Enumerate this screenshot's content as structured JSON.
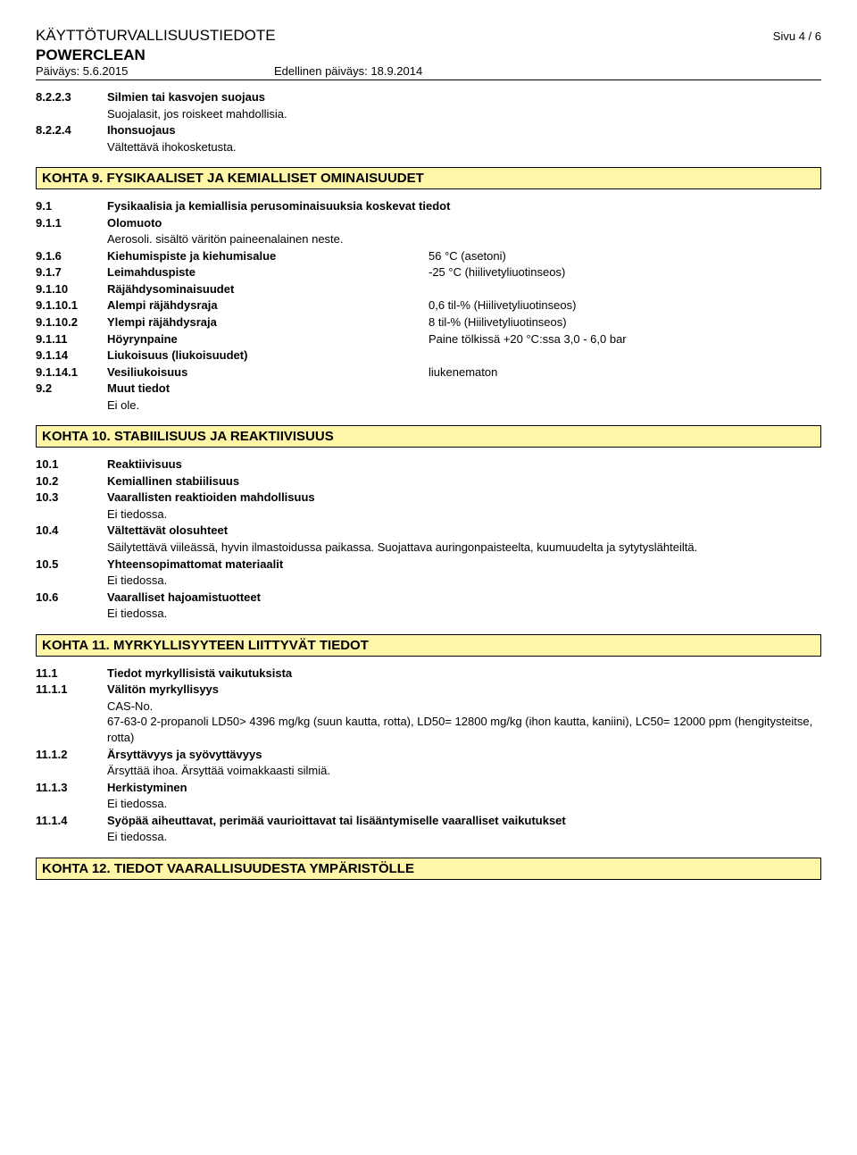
{
  "header": {
    "title": "KÄYTTÖTURVALLISUUSTIEDOTE",
    "page": "Sivu 4 / 6",
    "product": "POWERCLEAN",
    "date_label": "Päiväys: 5.6.2015",
    "prev_date_label": "Edellinen päiväys: 18.9.2014"
  },
  "s8": {
    "r1": {
      "num": "8.2.2.3",
      "label": "Silmien tai kasvojen suojaus",
      "sub": "Suojalasit, jos roiskeet mahdollisia."
    },
    "r2": {
      "num": "8.2.2.4",
      "label": "Ihonsuojaus",
      "sub": "Vältettävä ihokosketusta."
    }
  },
  "kohta9": {
    "title": "KOHTA 9. FYSIKAALISET JA KEMIALLISET OMINAISUUDET"
  },
  "s9": {
    "r1": {
      "num": "9.1",
      "label": "Fysikaalisia ja kemiallisia perusominaisuuksia koskevat tiedot"
    },
    "r2": {
      "num": "9.1.1",
      "label": "Olomuoto",
      "sub": "Aerosoli. sisältö väritön paineenalainen neste."
    },
    "r3": {
      "num": "9.1.6",
      "label": "Kiehumispiste ja kiehumisalue",
      "val": "56 °C (asetoni)"
    },
    "r4": {
      "num": "9.1.7",
      "label": "Leimahduspiste",
      "val": "-25 °C (hiilivetyliuotinseos)"
    },
    "r5": {
      "num": "9.1.10",
      "label": "Räjähdysominaisuudet"
    },
    "r6": {
      "num": "9.1.10.1",
      "label": "Alempi räjähdysraja",
      "val": "0,6 til-% (Hiilivetyliuotinseos)"
    },
    "r7": {
      "num": "9.1.10.2",
      "label": "Ylempi räjähdysraja",
      "val": "8 til-% (Hiilivetyliuotinseos)"
    },
    "r8": {
      "num": "9.1.11",
      "label": "Höyrynpaine",
      "val": "Paine tölkissä +20 °C:ssa  3,0 - 6,0 bar"
    },
    "r9": {
      "num": "9.1.14",
      "label": "Liukoisuus (liukoisuudet)"
    },
    "r10": {
      "num": "9.1.14.1",
      "label": "Vesiliukoisuus",
      "val": "liukenematon"
    },
    "r11": {
      "num": "9.2",
      "label": "Muut tiedot",
      "sub": "Ei ole."
    }
  },
  "kohta10": {
    "title": "KOHTA 10. STABIILISUUS JA REAKTIIVISUUS"
  },
  "s10": {
    "r1": {
      "num": "10.1",
      "label": "Reaktiivisuus"
    },
    "r2": {
      "num": "10.2",
      "label": "Kemiallinen stabiilisuus"
    },
    "r3": {
      "num": "10.3",
      "label": "Vaarallisten reaktioiden mahdollisuus",
      "sub": "Ei tiedossa."
    },
    "r4": {
      "num": "10.4",
      "label": "Vältettävät olosuhteet",
      "sub": "Säilytettävä viileässä, hyvin ilmastoidussa paikassa. Suojattava auringonpaisteelta, kuumuudelta ja sytytyslähteiltä."
    },
    "r5": {
      "num": "10.5",
      "label": "Yhteensopimattomat materiaalit",
      "sub": "Ei tiedossa."
    },
    "r6": {
      "num": "10.6",
      "label": "Vaaralliset hajoamistuotteet",
      "sub": "Ei tiedossa."
    }
  },
  "kohta11": {
    "title": "KOHTA 11. MYRKYLLISYYTEEN LIITTYVÄT TIEDOT"
  },
  "s11": {
    "r1": {
      "num": "11.1",
      "label": "Tiedot myrkyllisistä vaikutuksista"
    },
    "r2": {
      "num": "11.1.1",
      "label": "Välitön myrkyllisyys",
      "sub1": "CAS-No.",
      "sub2": "67-63-0    2-propanoli    LD50> 4396 mg/kg (suun kautta, rotta), LD50= 12800 mg/kg (ihon kautta, kaniini), LC50= 12000 ppm (hengitysteitse, rotta)"
    },
    "r3": {
      "num": "11.1.2",
      "label": "Ärsyttävyys ja syövyttävyys",
      "sub": "Ärsyttää ihoa. Ärsyttää voimakkaasti silmiä."
    },
    "r4": {
      "num": "11.1.3",
      "label": "Herkistyminen",
      "sub": "Ei tiedossa."
    },
    "r5": {
      "num": "11.1.4",
      "label": "Syöpää aiheuttavat, perimää vaurioittavat tai lisääntymiselle vaaralliset vaikutukset",
      "sub": "Ei tiedossa."
    }
  },
  "kohta12": {
    "title": "KOHTA 12. TIEDOT VAARALLISUUDESTA YMPÄRISTÖLLE"
  }
}
